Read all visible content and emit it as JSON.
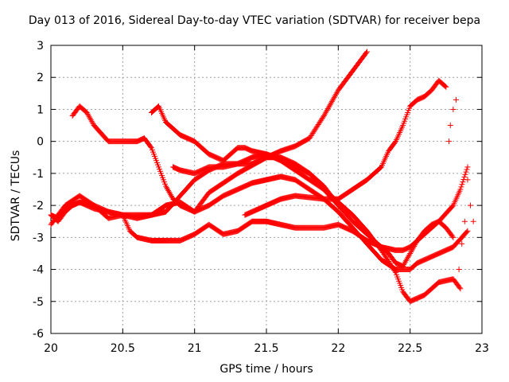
{
  "chart_data": {
    "type": "scatter",
    "title": "Day 013 of 2016, Sidereal Day-to-day VTEC variation (SDTVAR) for receiver bepa",
    "xlabel": "GPS time / hours",
    "ylabel": "SDTVAR / TECUs",
    "xlim": [
      20,
      23
    ],
    "ylim": [
      -6,
      3
    ],
    "xticks": [
      20,
      20.5,
      21,
      21.5,
      22,
      22.5,
      23
    ],
    "yticks": [
      -6,
      -5,
      -4,
      -3,
      -2,
      -1,
      0,
      1,
      2,
      3
    ],
    "xtick_labels": [
      "20",
      "20.5",
      "21",
      "21.5",
      "22",
      "22.5",
      "23"
    ],
    "ytick_labels": [
      "-6",
      "-5",
      "-4",
      "-3",
      "-2",
      "-1",
      "0",
      "1",
      "2",
      "3"
    ],
    "grid": true,
    "marker": "+",
    "color": "#ff0000",
    "series": [
      {
        "x": [
          20.0,
          20.05,
          20.1,
          20.15,
          20.2,
          20.3,
          20.4,
          20.5,
          20.6,
          20.7,
          20.8,
          20.9,
          21.0,
          21.1,
          21.2,
          21.3,
          21.4,
          21.5,
          21.6,
          21.7,
          21.8,
          21.9,
          22.0,
          22.05,
          22.1,
          22.15,
          22.2
        ],
        "y": [
          -2.3,
          -2.5,
          -2.2,
          -2.0,
          -1.9,
          -2.0,
          -2.2,
          -2.3,
          -2.3,
          -2.3,
          -2.0,
          -1.9,
          -2.2,
          -1.6,
          -1.3,
          -1.0,
          -0.75,
          -0.5,
          -0.3,
          -0.15,
          0.1,
          0.8,
          1.6,
          1.9,
          2.2,
          2.5,
          2.8
        ]
      },
      {
        "x": [
          20.0,
          20.05,
          20.1,
          20.2,
          20.3,
          20.4,
          20.5,
          20.6,
          20.7,
          20.8,
          20.9,
          21.0,
          21.1,
          21.2,
          21.3,
          21.4,
          21.5,
          21.6,
          21.7,
          21.8,
          21.9,
          22.0,
          22.1,
          22.2,
          22.3,
          22.35,
          22.4,
          22.45,
          22.5,
          22.55,
          22.6,
          22.65,
          22.7,
          22.75,
          22.8
        ],
        "y": [
          -2.6,
          -2.3,
          -2.0,
          -1.7,
          -2.0,
          -2.4,
          -2.3,
          -2.4,
          -2.3,
          -2.2,
          -1.7,
          -1.2,
          -0.9,
          -0.7,
          -0.7,
          -0.5,
          -0.4,
          -0.55,
          -0.8,
          -1.0,
          -1.4,
          -2.0,
          -2.5,
          -2.9,
          -3.3,
          -3.5,
          -3.8,
          -3.9,
          -3.5,
          -3.1,
          -2.8,
          -2.6,
          -2.5,
          -2.7,
          -3.0
        ]
      },
      {
        "x": [
          20.0,
          20.05,
          20.1,
          20.2,
          20.3,
          20.4,
          20.5,
          20.55,
          20.6,
          20.7,
          20.8,
          20.9,
          21.0,
          21.1,
          21.2,
          21.3,
          21.4,
          21.5,
          21.6,
          21.7,
          21.8,
          21.9,
          22.0,
          22.1,
          22.2,
          22.3,
          22.4,
          22.45,
          22.5,
          22.55,
          22.6,
          22.7,
          22.8,
          22.85,
          22.9
        ],
        "y": [
          -2.3,
          -2.4,
          -2.1,
          -1.9,
          -2.1,
          -2.2,
          -2.3,
          -2.8,
          -3.0,
          -3.1,
          -3.1,
          -3.1,
          -2.9,
          -2.6,
          -2.9,
          -2.8,
          -2.5,
          -2.5,
          -2.6,
          -2.7,
          -2.7,
          -2.7,
          -2.6,
          -2.8,
          -3.1,
          -3.3,
          -3.4,
          -3.4,
          -3.3,
          -3.1,
          -2.9,
          -2.5,
          -2.0,
          -1.5,
          -0.8
        ]
      },
      {
        "x": [
          20.15,
          20.2,
          20.25,
          20.3,
          20.4,
          20.5,
          20.6,
          20.65,
          20.7,
          20.75,
          20.8,
          20.85,
          20.9,
          21.0,
          21.1,
          21.2,
          21.3,
          21.4,
          21.5,
          21.6,
          21.7,
          21.8,
          21.9,
          22.0,
          22.1,
          22.2,
          22.3,
          22.4,
          22.5,
          22.55,
          22.6,
          22.7,
          22.8,
          22.9
        ],
        "y": [
          0.8,
          1.1,
          0.9,
          0.5,
          0.0,
          0.0,
          0.0,
          0.1,
          -0.2,
          -0.8,
          -1.4,
          -1.8,
          -2.0,
          -2.2,
          -2.0,
          -1.7,
          -1.5,
          -1.3,
          -1.2,
          -1.1,
          -1.2,
          -1.5,
          -1.8,
          -2.2,
          -2.7,
          -3.2,
          -3.7,
          -4.0,
          -4.0,
          -3.8,
          -3.7,
          -3.5,
          -3.3,
          -2.8
        ]
      },
      {
        "x": [
          20.7,
          20.75,
          20.8,
          20.85,
          20.9,
          21.0,
          21.05,
          21.1,
          21.2,
          21.3,
          21.35,
          21.4,
          21.5,
          21.6,
          21.7,
          21.8,
          21.9,
          22.0,
          22.1,
          22.2,
          22.3,
          22.4,
          22.45,
          22.5,
          22.55,
          22.6,
          22.65,
          22.7,
          22.8,
          22.85
        ],
        "y": [
          0.9,
          1.1,
          0.6,
          0.4,
          0.2,
          0.0,
          -0.2,
          -0.4,
          -0.6,
          -0.2,
          -0.2,
          -0.3,
          -0.4,
          -0.6,
          -0.9,
          -1.2,
          -1.5,
          -1.9,
          -2.3,
          -2.8,
          -3.4,
          -4.1,
          -4.7,
          -5.0,
          -4.9,
          -4.8,
          -4.6,
          -4.4,
          -4.3,
          -4.6
        ]
      },
      {
        "x": [
          20.85,
          20.9,
          21.0,
          21.1,
          21.2,
          21.3,
          21.4,
          21.5,
          21.6,
          21.7,
          21.8,
          21.9,
          22.0
        ],
        "y": [
          -0.8,
          -0.9,
          -1.0,
          -0.8,
          -0.8,
          -0.7,
          -0.7,
          -0.5,
          -0.5,
          -0.7,
          -1.0,
          -1.5,
          -2.0
        ]
      },
      {
        "x": [
          21.35,
          21.4,
          21.5,
          21.6,
          21.7,
          21.8,
          21.9,
          22.0,
          22.1,
          22.2,
          22.3,
          22.35,
          22.4,
          22.45,
          22.5,
          22.55,
          22.6,
          22.65,
          22.7,
          22.75
        ],
        "y": [
          -2.3,
          -2.2,
          -2.0,
          -1.8,
          -1.7,
          -1.75,
          -1.8,
          -1.8,
          -1.5,
          -1.2,
          -0.8,
          -0.3,
          0.0,
          0.5,
          1.1,
          1.3,
          1.4,
          1.6,
          1.9,
          1.7
        ]
      },
      {
        "x": [
          22.77,
          22.78,
          22.8,
          22.82,
          22.84,
          22.86,
          22.88,
          22.9,
          22.92,
          22.94
        ],
        "y": [
          0.0,
          0.5,
          1.0,
          1.3,
          -4.0,
          -3.2,
          -2.5,
          -1.2,
          -2.0,
          -2.5
        ]
      }
    ]
  }
}
